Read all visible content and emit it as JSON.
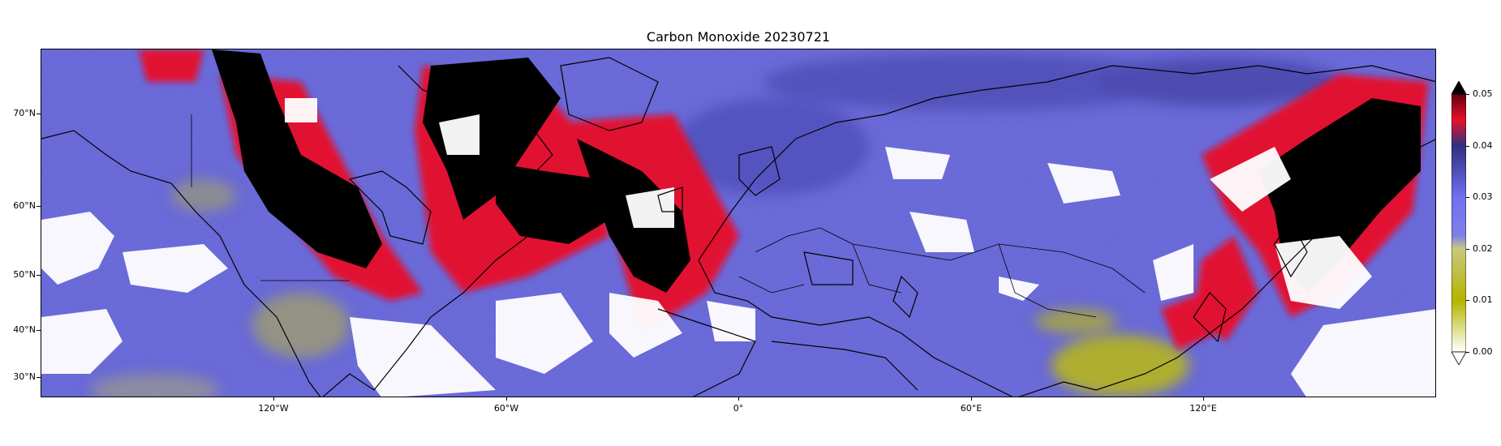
{
  "map": {
    "title": "Carbon Monoxide 20230721",
    "projection": "PlateCarree",
    "lon_range": [
      -180,
      180
    ],
    "lat_range": [
      25,
      83
    ],
    "lat_labels": [
      "70°N",
      "60°N",
      "50°N",
      "40°N",
      "30°N"
    ],
    "lon_labels": [
      "120°W",
      "60°W",
      "0°",
      "60°E",
      "120°E"
    ]
  },
  "colorbar": {
    "ticks": [
      "0.00",
      "0.01",
      "0.02",
      "0.03",
      "0.04",
      "0.05"
    ],
    "range": [
      0.0,
      0.05
    ],
    "extend": "both",
    "colors": {
      "low": "#ffffff",
      "mid_low": "#b5b400",
      "mid": "#7070f0",
      "mid_high": "#303080",
      "high": "#e8102a",
      "over": "#000000"
    }
  }
}
